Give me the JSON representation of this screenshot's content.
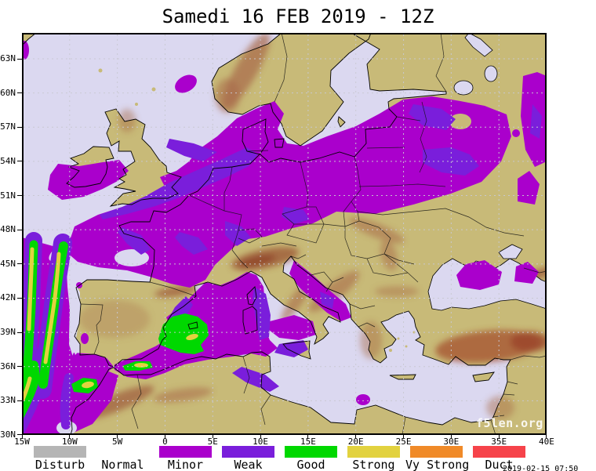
{
  "title": "Samedi 16 FEB 2019 - 12Z",
  "map": {
    "lat_labels": [
      "63N",
      "60N",
      "57N",
      "54N",
      "51N",
      "48N",
      "45N",
      "42N",
      "39N",
      "36N",
      "33N",
      "30N"
    ],
    "lon_labels": [
      "15W",
      "10W",
      "5W",
      "0",
      "5E",
      "10E",
      "15E",
      "20E",
      "25E",
      "30E",
      "35E",
      "40E"
    ],
    "watermark": "f5len.org",
    "timestamp": "2019-02-15 07:50",
    "colors": {
      "sea": "#dbd8f0",
      "land": "#c8ba78",
      "terrain": "#a86a48",
      "frame": "#000000",
      "grid": "#c9c9d2",
      "border": "#111111"
    }
  },
  "legend": {
    "items": [
      {
        "key": "disturb",
        "label": "Disturb",
        "color": "#b5b5b5"
      },
      {
        "key": "normal",
        "label": "Normal",
        "color": null
      },
      {
        "key": "minor",
        "label": "Minor",
        "color": "#aa00cc"
      },
      {
        "key": "weak",
        "label": "Weak",
        "color": "#7a1edb"
      },
      {
        "key": "good",
        "label": "Good",
        "color": "#00d800"
      },
      {
        "key": "strong",
        "label": "Strong",
        "color": "#e2d23f"
      },
      {
        "key": "vystrong",
        "label": "Vy Strong",
        "color": "#f08a28"
      },
      {
        "key": "duct",
        "label": "Duct",
        "color": "#f6434a"
      }
    ]
  }
}
